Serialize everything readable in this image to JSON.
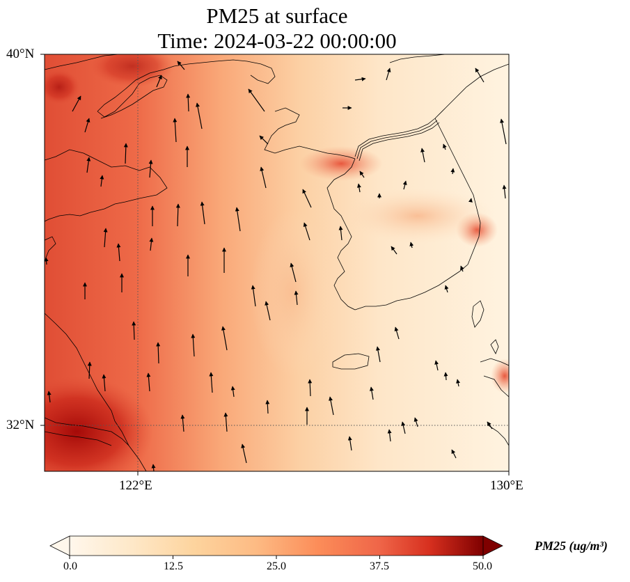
{
  "title": {
    "line1": "PM25 at surface",
    "line2": "Time: 2024-03-22 00:00:00"
  },
  "axes": {
    "lat_labels": [
      "40°N",
      "32°N"
    ],
    "lon_labels": [
      "122°E",
      "130°E"
    ],
    "lat_range": [
      31,
      40
    ],
    "lon_range": [
      120,
      130
    ],
    "gridlines": "dotted at 122°E and 32°N"
  },
  "colorbar": {
    "label": "PM25 (ug/m³)",
    "ticks": [
      "0.0",
      "12.5",
      "25.0",
      "37.5",
      "50.0"
    ],
    "range": [
      0,
      50
    ],
    "colormap": "OrRd",
    "extend": "both"
  },
  "colors": {
    "low": "#fff7ec",
    "mid": "#fdbb84",
    "high": "#d7301f",
    "max": "#7f0000",
    "coastline": "#000000"
  },
  "map_content": {
    "field": "PM2.5 surface concentration",
    "vectors": "wind arrows, predominantly northward/north-northwestward"
  }
}
